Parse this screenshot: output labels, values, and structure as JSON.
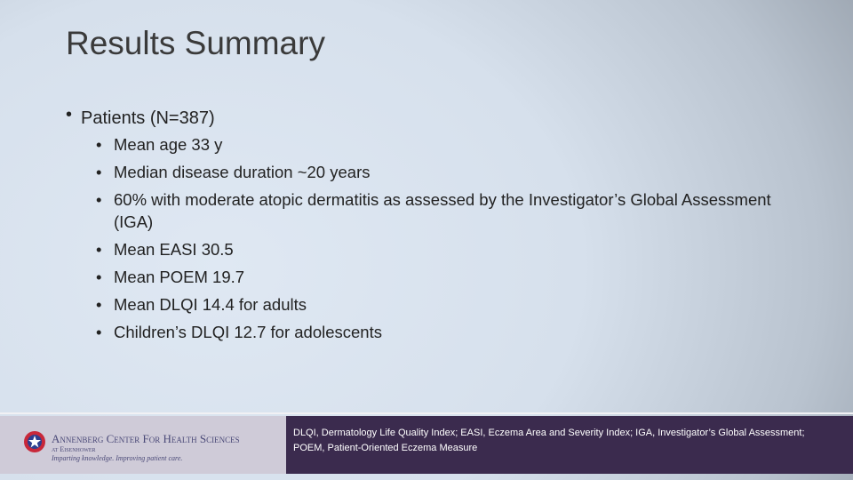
{
  "slide": {
    "title": "Results Summary",
    "bullets": [
      {
        "text": "Patients (N=387)",
        "sub_bullets": [
          "Mean age 33 y",
          "Median disease duration ~20 years",
          "60% with moderate atopic dermatitis as assessed by the Investigator’s Global Assessment (IGA)",
          "Mean EASI 30.5",
          "Mean POEM 19.7",
          "Mean DLQI 14.4 for adults",
          "Children’s DLQI 12.7 for adolescents"
        ]
      }
    ],
    "footer": {
      "logo": {
        "name": "Annenberg Center For Health Sciences",
        "location": "at Eisenhower",
        "tagline": "Imparting knowledge. Improving patient care."
      },
      "footnote": "DLQI, Dermatology Life Quality Index; EASI, Eczema Area and Severity Index; IGA, Investigator’s Global Assessment; POEM, Patient-Oriented Eczema Measure"
    }
  }
}
